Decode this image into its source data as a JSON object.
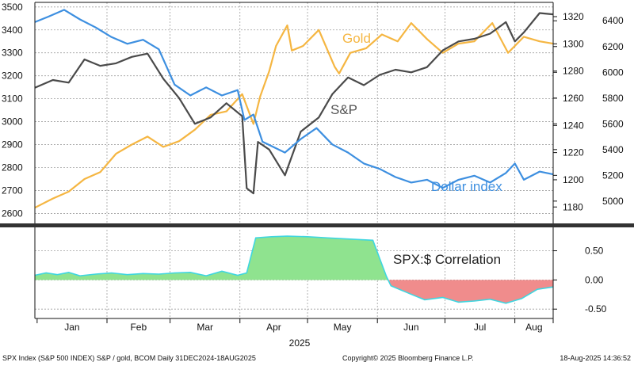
{
  "colors": {
    "sp": "#4a4a4a",
    "gold": "#f5b642",
    "dollar": "#3d8fe0",
    "corr_pos_fill": "#8fe38f",
    "corr_neg_fill": "#f08c8c",
    "corr_line": "#3fd6e0",
    "grid": "#9e9e9e",
    "divider": "#333333"
  },
  "chart_data": [
    {
      "type": "line",
      "x_type": "date",
      "xlim": [
        "2024-12-31",
        "2025-08-18"
      ],
      "grid": true,
      "left_axis": {
        "ylim": [
          2560,
          3520
        ],
        "ticks": [
          2600,
          2700,
          2800,
          2900,
          3000,
          3100,
          3200,
          3300,
          3400,
          3500
        ]
      },
      "right_axis_gold": {
        "ylim": [
          1168.5,
          1330.5
        ],
        "ticks": [
          1180,
          1200,
          1220,
          1240,
          1260,
          1280,
          1300,
          1320
        ]
      },
      "right_axis_sp": {
        "ylim": [
          4833,
          6543
        ],
        "ticks": [
          5000,
          5200,
          5400,
          5600,
          5800,
          6000,
          6200,
          6400
        ]
      },
      "series": [
        {
          "name": "Gold",
          "axis": "left",
          "x": [
            "2024-12-31",
            "2025-01-08",
            "2025-01-15",
            "2025-01-22",
            "2025-01-29",
            "2025-02-05",
            "2025-02-12",
            "2025-02-19",
            "2025-02-26",
            "2025-03-05",
            "2025-03-12",
            "2025-03-19",
            "2025-03-26",
            "2025-04-02",
            "2025-04-07",
            "2025-04-10",
            "2025-04-14",
            "2025-04-17",
            "2025-04-22",
            "2025-04-24",
            "2025-04-29",
            "2025-05-06",
            "2025-05-13",
            "2025-05-15",
            "2025-05-20",
            "2025-05-27",
            "2025-06-03",
            "2025-06-10",
            "2025-06-16",
            "2025-06-23",
            "2025-06-30",
            "2025-07-07",
            "2025-07-14",
            "2025-07-22",
            "2025-07-29",
            "2025-08-05",
            "2025-08-12",
            "2025-08-18"
          ],
          "y": [
            2625,
            2665,
            2695,
            2750,
            2780,
            2860,
            2900,
            2935,
            2890,
            2915,
            2965,
            3030,
            3045,
            3120,
            2990,
            3110,
            3220,
            3330,
            3420,
            3310,
            3330,
            3400,
            3240,
            3210,
            3300,
            3320,
            3380,
            3350,
            3430,
            3360,
            3300,
            3340,
            3350,
            3430,
            3300,
            3370,
            3350,
            3340
          ]
        },
        {
          "name": "S&P",
          "axis": "right_sp",
          "x": [
            "2024-12-31",
            "2025-01-08",
            "2025-01-15",
            "2025-01-22",
            "2025-01-29",
            "2025-02-05",
            "2025-02-12",
            "2025-02-19",
            "2025-02-26",
            "2025-03-05",
            "2025-03-12",
            "2025-03-19",
            "2025-03-26",
            "2025-04-02",
            "2025-04-04",
            "2025-04-07",
            "2025-04-09",
            "2025-04-14",
            "2025-04-21",
            "2025-04-28",
            "2025-05-06",
            "2025-05-12",
            "2025-05-19",
            "2025-05-26",
            "2025-06-02",
            "2025-06-09",
            "2025-06-16",
            "2025-06-23",
            "2025-06-30",
            "2025-07-07",
            "2025-07-14",
            "2025-07-21",
            "2025-07-28",
            "2025-08-01",
            "2025-08-05",
            "2025-08-12",
            "2025-08-18"
          ],
          "y": [
            5880,
            5940,
            5920,
            6100,
            6050,
            6070,
            6120,
            6145,
            5950,
            5800,
            5600,
            5650,
            5760,
            5660,
            5100,
            5060,
            5460,
            5400,
            5200,
            5540,
            5650,
            5830,
            5960,
            5900,
            5980,
            6020,
            6000,
            6040,
            6170,
            6240,
            6260,
            6300,
            6390,
            6240,
            6310,
            6460,
            6450
          ]
        },
        {
          "name": "Dollar index",
          "axis": "right_gold",
          "x": [
            "2024-12-31",
            "2025-01-06",
            "2025-01-13",
            "2025-01-20",
            "2025-01-27",
            "2025-02-03",
            "2025-02-10",
            "2025-02-17",
            "2025-02-24",
            "2025-03-03",
            "2025-03-10",
            "2025-03-17",
            "2025-03-24",
            "2025-03-31",
            "2025-04-03",
            "2025-04-07",
            "2025-04-11",
            "2025-04-21",
            "2025-04-28",
            "2025-05-05",
            "2025-05-12",
            "2025-05-19",
            "2025-05-26",
            "2025-06-02",
            "2025-06-09",
            "2025-06-16",
            "2025-06-23",
            "2025-06-30",
            "2025-07-07",
            "2025-07-14",
            "2025-07-21",
            "2025-07-28",
            "2025-08-01",
            "2025-08-05",
            "2025-08-12",
            "2025-08-18"
          ],
          "y": [
            1316,
            1320,
            1325,
            1318,
            1312,
            1305,
            1300,
            1303,
            1296,
            1270,
            1262,
            1268,
            1262,
            1266,
            1244,
            1248,
            1228,
            1220,
            1230,
            1238,
            1226,
            1220,
            1212,
            1208,
            1202,
            1198,
            1200,
            1194,
            1200,
            1203,
            1198,
            1205,
            1212,
            1200,
            1206,
            1204
          ]
        }
      ]
    },
    {
      "type": "area",
      "x_type": "date",
      "xlim": [
        "2024-12-31",
        "2025-08-18"
      ],
      "ylim": [
        -0.66,
        0.86
      ],
      "ticks": [
        -0.5,
        0.0,
        0.5
      ],
      "tick_labels": [
        "-0.50",
        "0.00",
        "0.50"
      ],
      "grid": true,
      "months": [
        "Jan",
        "Feb",
        "Mar",
        "Apr",
        "May",
        "Jun",
        "Jul",
        "Aug"
      ],
      "year": "2025",
      "series": [
        {
          "name": "SPX:$ Correlation",
          "x": [
            "2024-12-31",
            "2025-01-05",
            "2025-01-10",
            "2025-01-15",
            "2025-01-20",
            "2025-01-27",
            "2025-02-03",
            "2025-02-10",
            "2025-02-17",
            "2025-02-24",
            "2025-03-03",
            "2025-03-10",
            "2025-03-17",
            "2025-03-24",
            "2025-03-31",
            "2025-04-04",
            "2025-04-08",
            "2025-04-15",
            "2025-04-22",
            "2025-05-01",
            "2025-05-10",
            "2025-05-20",
            "2025-05-30",
            "2025-06-05",
            "2025-06-07",
            "2025-06-15",
            "2025-06-22",
            "2025-06-30",
            "2025-07-07",
            "2025-07-14",
            "2025-07-21",
            "2025-07-28",
            "2025-08-04",
            "2025-08-11",
            "2025-08-18"
          ],
          "y": [
            0.08,
            0.12,
            0.09,
            0.13,
            0.07,
            0.1,
            0.12,
            0.09,
            0.11,
            0.1,
            0.12,
            0.13,
            0.07,
            0.15,
            0.08,
            0.12,
            0.72,
            0.74,
            0.75,
            0.74,
            0.72,
            0.7,
            0.68,
            0.06,
            -0.1,
            -0.23,
            -0.34,
            -0.3,
            -0.38,
            -0.36,
            -0.33,
            -0.4,
            -0.32,
            -0.16,
            -0.12
          ]
        }
      ]
    }
  ],
  "labels": {
    "gold": "Gold",
    "sp": "S&P",
    "dollar": "Dollar index",
    "correlation": "SPX:$ Correlation"
  },
  "footer": {
    "left": "SPX Index (S&P 500 INDEX) S&P / gold, BCOM  Daily 31DEC2024-18AUG2025",
    "center": "Copyright© 2025 Bloomberg Finance L.P.",
    "right": "18-Aug-2025 14:36:52"
  }
}
